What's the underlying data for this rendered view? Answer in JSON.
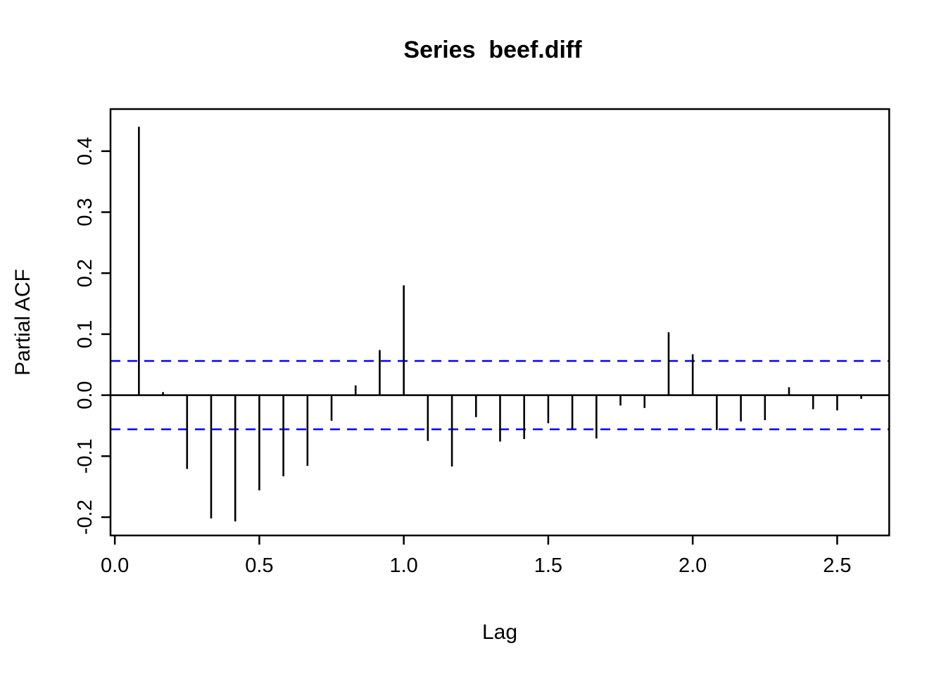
{
  "chart_data": {
    "type": "bar",
    "subtype": "pacf-needle-plot",
    "title": "Series  beef.diff",
    "xlabel": "Lag",
    "ylabel": "Partial ACF",
    "x": [
      0.0833,
      0.1667,
      0.25,
      0.3333,
      0.4167,
      0.5,
      0.5833,
      0.6667,
      0.75,
      0.8333,
      0.9167,
      1.0,
      1.0833,
      1.1667,
      1.25,
      1.3333,
      1.4167,
      1.5,
      1.5833,
      1.6667,
      1.75,
      1.8333,
      1.9167,
      2.0,
      2.0833,
      2.1667,
      2.25,
      2.3333,
      2.4167,
      2.5,
      2.5833
    ],
    "values": [
      0.44,
      0.005,
      -0.121,
      -0.202,
      -0.207,
      -0.156,
      -0.133,
      -0.116,
      -0.042,
      0.016,
      0.074,
      0.18,
      -0.075,
      -0.117,
      -0.036,
      -0.076,
      -0.072,
      -0.046,
      -0.056,
      -0.071,
      -0.017,
      -0.021,
      0.103,
      0.067,
      -0.057,
      -0.043,
      -0.041,
      0.013,
      -0.023,
      -0.025,
      -0.006
    ],
    "confidence_band": 0.056,
    "xlim": [
      -0.015,
      2.68
    ],
    "ylim": [
      -0.23,
      0.469
    ],
    "xticks": [
      0.0,
      0.5,
      1.0,
      1.5,
      2.0,
      2.5
    ],
    "xtick_labels": [
      "0.0",
      "0.5",
      "1.0",
      "1.5",
      "2.0",
      "2.5"
    ],
    "yticks": [
      -0.2,
      -0.1,
      0.0,
      0.1,
      0.2,
      0.3,
      0.4
    ],
    "ytick_labels": [
      "-0.2",
      "-0.1",
      "0.0",
      "0.1",
      "0.2",
      "0.3",
      "0.4"
    ],
    "grid": false,
    "legend_position": "none",
    "colors": {
      "bar": "#000000",
      "confidence_line": "#0000FF",
      "axis": "#000000",
      "background": "#ffffff"
    }
  }
}
